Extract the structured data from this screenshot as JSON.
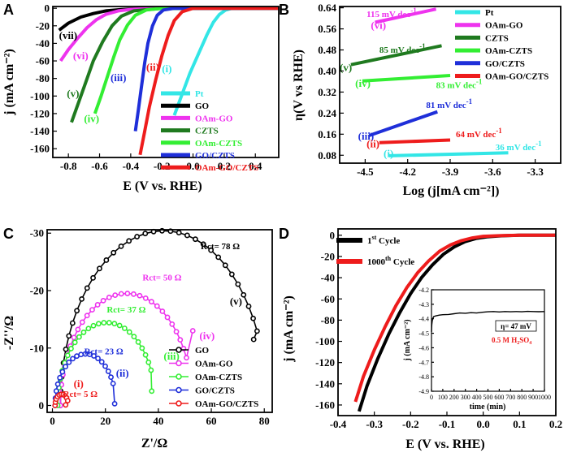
{
  "colors": {
    "pt": "#33e6e6",
    "go": "#000000",
    "oam_go": "#ee33ee",
    "czts": "#1f7a1f",
    "oam_czts": "#33ee33",
    "go_czts": "#1f2fd9",
    "oam_go_czts": "#ee1c1c"
  },
  "chart_data": [
    {
      "id": "A",
      "panel_label": "A",
      "type": "line",
      "xlabel": "E (V vs. RHE)",
      "ylabel": "j (mA cm⁻²)",
      "xlim": [
        -0.9,
        0.55
      ],
      "ylim": [
        -170,
        2
      ],
      "xticks": [
        -0.8,
        -0.6,
        -0.4,
        -0.2,
        0.0,
        0.2,
        0.4
      ],
      "xtick_labels": [
        "-0.8",
        "-0.6",
        "-0.4",
        "-0.2",
        "0.0",
        "0.2",
        "0.4"
      ],
      "yticks": [
        0,
        -20,
        -40,
        -60,
        -80,
        -100,
        -120,
        -140,
        -160
      ],
      "ytick_labels": [
        "0",
        "-20",
        "-40",
        "-60",
        "-80",
        "-100",
        "-120",
        "-140",
        "-160"
      ],
      "series": [
        {
          "name": "Pt",
          "color": "#33e6e6",
          "x": [
            -0.12,
            -0.07,
            -0.02,
            0.04,
            0.09,
            0.13,
            0.17,
            0.21,
            0.25,
            0.55
          ],
          "y": [
            -122,
            -98,
            -74,
            -50,
            -30,
            -16,
            -7,
            -2,
            0,
            0
          ]
        },
        {
          "name": "GO",
          "color": "#000000",
          "x": [
            -0.86,
            -0.8,
            -0.72,
            -0.64,
            -0.56,
            -0.46,
            -0.36,
            -0.2,
            0.55
          ],
          "y": [
            -25,
            -17,
            -10,
            -6,
            -3,
            -1.5,
            -0.5,
            0,
            0
          ]
        },
        {
          "name": "OAm-GO",
          "color": "#ee33ee",
          "x": [
            -0.85,
            -0.8,
            -0.74,
            -0.68,
            -0.62,
            -0.56,
            -0.48,
            -0.38,
            -0.2,
            0.55
          ],
          "y": [
            -60,
            -47,
            -34,
            -22,
            -13,
            -7,
            -3,
            -1,
            0,
            0
          ]
        },
        {
          "name": "CZTS",
          "color": "#1f7a1f",
          "x": [
            -0.78,
            -0.74,
            -0.69,
            -0.64,
            -0.58,
            -0.52,
            -0.46,
            -0.38,
            -0.2,
            0.55
          ],
          "y": [
            -130,
            -110,
            -85,
            -60,
            -38,
            -20,
            -9,
            -3,
            0,
            0
          ]
        },
        {
          "name": "OAm-CZTS",
          "color": "#33ee33",
          "x": [
            -0.63,
            -0.59,
            -0.55,
            -0.51,
            -0.47,
            -0.42,
            -0.37,
            -0.3,
            -0.2,
            0.55
          ],
          "y": [
            -120,
            -100,
            -78,
            -56,
            -36,
            -19,
            -8,
            -2,
            0,
            0
          ]
        },
        {
          "name": "GO/CZTS",
          "color": "#1f2fd9",
          "x": [
            -0.37,
            -0.35,
            -0.33,
            -0.31,
            -0.29,
            -0.26,
            -0.23,
            -0.19,
            -0.12,
            0.55
          ],
          "y": [
            -140,
            -115,
            -88,
            -62,
            -40,
            -20,
            -8,
            -2,
            0,
            0
          ]
        },
        {
          "name": "OAm-GO/CZTS",
          "color": "#ee1c1c",
          "x": [
            -0.34,
            -0.31,
            -0.28,
            -0.24,
            -0.2,
            -0.16,
            -0.12,
            -0.07,
            0.0,
            0.55
          ],
          "y": [
            -167,
            -140,
            -112,
            -82,
            -54,
            -31,
            -14,
            -4,
            0,
            0
          ]
        }
      ],
      "labels": [
        {
          "text": "(vii)",
          "color": "#000000",
          "x": -0.86,
          "y": -35
        },
        {
          "text": "(vi)",
          "color": "#ee33ee",
          "x": -0.77,
          "y": -58
        },
        {
          "text": "(v)",
          "color": "#1f7a1f",
          "x": -0.81,
          "y": -101
        },
        {
          "text": "(iv)",
          "color": "#33ee33",
          "x": -0.7,
          "y": -130
        },
        {
          "text": "(iii)",
          "color": "#1f2fd9",
          "x": -0.53,
          "y": -83
        },
        {
          "text": "(ii)",
          "color": "#ee1c1c",
          "x": -0.3,
          "y": -71
        },
        {
          "text": "(i)",
          "color": "#33e6e6",
          "x": -0.2,
          "y": -73
        }
      ],
      "legend": [
        "Pt",
        "GO",
        "OAm-GO",
        "CZTS",
        "OAm-CZTS",
        "GO/CZTS",
        "OAm-GO/CZTS"
      ],
      "legend_position": "lower-right"
    },
    {
      "id": "B",
      "panel_label": "B",
      "type": "line",
      "xlabel": "Log (j[mA cm⁻²])",
      "ylabel": "η(V vs RHE)",
      "xlim": [
        -4.68,
        -3.12
      ],
      "ylim": [
        0.05,
        0.645
      ],
      "xticks": [
        -4.5,
        -4.2,
        -3.9,
        -3.6,
        -3.3
      ],
      "xtick_labels": [
        "-4.5",
        "-4.2",
        "-3.9",
        "-3.6",
        "-3.3"
      ],
      "yticks": [
        0.08,
        0.16,
        0.24,
        0.32,
        0.4,
        0.48,
        0.56,
        0.64
      ],
      "ytick_labels": [
        "0.08",
        "0.16",
        "0.24",
        "0.32",
        "0.40",
        "0.48",
        "0.56",
        "0.64"
      ],
      "series": [
        {
          "name": "Pt",
          "color": "#33e6e6",
          "x": [
            -4.33,
            -3.49
          ],
          "y": [
            0.078,
            0.089
          ]
        },
        {
          "name": "OAm-GO",
          "color": "#ee33ee",
          "x": [
            -4.43,
            -4.0
          ],
          "y": [
            0.585,
            0.635
          ]
        },
        {
          "name": "CZTS",
          "color": "#1f7a1f",
          "x": [
            -4.6,
            -3.96
          ],
          "y": [
            0.424,
            0.496
          ]
        },
        {
          "name": "OAm-CZTS",
          "color": "#33ee33",
          "x": [
            -4.52,
            -3.9
          ],
          "y": [
            0.362,
            0.383
          ]
        },
        {
          "name": "GO/CZTS",
          "color": "#1f2fd9",
          "x": [
            -4.47,
            -3.99
          ],
          "y": [
            0.155,
            0.245
          ]
        },
        {
          "name": "OAm-GO/CZTS",
          "color": "#ee1c1c",
          "x": [
            -4.4,
            -3.9
          ],
          "y": [
            0.128,
            0.138
          ]
        }
      ],
      "slopes": [
        {
          "text": "115 mV dec",
          "sup": "-1",
          "color": "#ee33ee",
          "x": -4.49,
          "y": 0.605
        },
        {
          "text": "85 mV dec",
          "sup": "-1",
          "color": "#1f7a1f",
          "x": -4.4,
          "y": 0.47
        },
        {
          "text": "83 mV dec",
          "sup": "-1",
          "color": "#33ee33",
          "x": -4.0,
          "y": 0.335
        },
        {
          "text": "81 mV dec",
          "sup": "-1",
          "color": "#1f2fd9",
          "x": -4.07,
          "y": 0.26
        },
        {
          "text": "64 mV dec",
          "sup": "-1",
          "color": "#ee1c1c",
          "x": -3.86,
          "y": 0.148
        },
        {
          "text": "36 mV dec",
          "sup": "-1",
          "color": "#33e6e6",
          "x": -3.58,
          "y": 0.1
        }
      ],
      "labels": [
        {
          "text": "(vi)",
          "color": "#ee33ee",
          "x": -4.46,
          "y": 0.56
        },
        {
          "text": "(v)",
          "color": "#1f7a1f",
          "x": -4.68,
          "y": 0.4
        },
        {
          "text": "(iv)",
          "color": "#33ee33",
          "x": -4.57,
          "y": 0.34
        },
        {
          "text": "(iii)",
          "color": "#1f2fd9",
          "x": -4.55,
          "y": 0.14
        },
        {
          "text": "(ii)",
          "color": "#ee1c1c",
          "x": -4.49,
          "y": 0.11
        },
        {
          "text": "(i)",
          "color": "#33e6e6",
          "x": -4.37,
          "y": 0.073
        }
      ],
      "legend": [
        "Pt",
        "OAm-GO",
        "CZTS",
        "OAm-CZTS",
        "GO/CZTS",
        "OAm-GO/CZTS"
      ],
      "legend_position": "upper-right"
    },
    {
      "id": "C",
      "panel_label": "C",
      "type": "scatter",
      "xlabel": "Z'/Ω",
      "ylabel": "-Z''/Ω",
      "xlim": [
        -2,
        83
      ],
      "ylim": [
        1.2,
        -30.6
      ],
      "xticks": [
        0,
        20,
        40,
        60,
        80
      ],
      "xtick_labels": [
        "0",
        "20",
        "40",
        "60",
        "80"
      ],
      "yticks": [
        0,
        -10,
        -20,
        -30
      ],
      "ytick_labels": [
        "0",
        "-10",
        "-20",
        "-30"
      ],
      "series": [
        {
          "name": "GO",
          "color": "#000000",
          "Rs": 3,
          "Rct": 78,
          "points": 34,
          "tail_x": 76,
          "tail_y": -11.5
        },
        {
          "name": "OAm-GO",
          "color": "#ee33ee",
          "Rs": 3,
          "Rct": 50,
          "points": 30,
          "tail_x": 53,
          "tail_y": -13
        },
        {
          "name": "OAm-CZTS",
          "color": "#33ee33",
          "Rs": 2,
          "Rct": 37,
          "points": 26,
          "tail_x": 37.5,
          "tail_y": -2.5
        },
        {
          "name": "GO/CZTS",
          "color": "#1f2fd9",
          "Rs": 1,
          "Rct": 23,
          "points": 20,
          "tail_x": 23.5,
          "tail_y": -0.3
        },
        {
          "name": "OAm-GO/CZTS",
          "color": "#ee1c1c",
          "Rs": 1,
          "Rct": 5,
          "points": 10,
          "tail_x": 5,
          "tail_y": -0.1
        }
      ],
      "rct_labels": [
        {
          "text": "Rct= 78 Ω",
          "color": "#000000",
          "x": 56,
          "y": -27.2
        },
        {
          "text": "Rct= 50 Ω",
          "color": "#ee33ee",
          "x": 34,
          "y": -21.8
        },
        {
          "text": "Rct= 37 Ω",
          "color": "#33ee33",
          "x": 20.5,
          "y": -16.2
        },
        {
          "text": "Rct= 23 Ω",
          "color": "#1f2fd9",
          "x": 12,
          "y": -8.9
        },
        {
          "text": "Rct= 5 Ω",
          "color": "#ee1c1c",
          "x": 4,
          "y": -1.5
        }
      ],
      "labels": [
        {
          "text": "(v)",
          "color": "#000000",
          "x": 67,
          "y": -17.5
        },
        {
          "text": "(iv)",
          "color": "#ee33ee",
          "x": 55.5,
          "y": -11.5
        },
        {
          "text": "(iii)",
          "color": "#33ee33",
          "x": 42,
          "y": -8
        },
        {
          "text": "(ii)",
          "color": "#1f2fd9",
          "x": 24,
          "y": -5
        },
        {
          "text": "(i)",
          "color": "#ee1c1c",
          "x": 8,
          "y": -3.2
        }
      ],
      "legend": [
        "GO",
        "OAm-GO",
        "OAm-CZTS",
        "GO/CZTS",
        "OAm-GO/CZTS"
      ],
      "legend_position": "lower-right"
    },
    {
      "id": "D",
      "panel_label": "D",
      "type": "line",
      "xlabel": "E (V vs. RHE)",
      "ylabel": "j (mA cm⁻²)",
      "xlim": [
        -0.4,
        0.2
      ],
      "ylim": [
        -170,
        6
      ],
      "xticks": [
        -0.4,
        -0.3,
        -0.2,
        -0.1,
        0.0,
        0.1,
        0.2
      ],
      "xtick_labels": [
        "-0.4",
        "-0.3",
        "-0.2",
        "-0.1",
        "0.0",
        "0.1",
        "0.2"
      ],
      "yticks": [
        0,
        -20,
        -40,
        -60,
        -80,
        -100,
        -120,
        -140,
        -160
      ],
      "ytick_labels": [
        "0",
        "-20",
        "-40",
        "-60",
        "-80",
        "-100",
        "-120",
        "-140",
        "-160"
      ],
      "series": [
        {
          "name": "1st Cycle",
          "label_main": "1",
          "label_sup": "st",
          "label_rest": " Cycle",
          "color": "#000000",
          "x": [
            -0.342,
            -0.32,
            -0.29,
            -0.26,
            -0.23,
            -0.2,
            -0.17,
            -0.14,
            -0.11,
            -0.08,
            -0.05,
            -0.02,
            0.01,
            0.05,
            0.1,
            0.2
          ],
          "y": [
            -166,
            -142,
            -116,
            -93,
            -73,
            -55,
            -40,
            -28,
            -18,
            -11,
            -6,
            -3,
            -1.5,
            -0.5,
            0,
            0
          ]
        },
        {
          "name": "1000th Cycle",
          "label_main": "1000",
          "label_sup": "th",
          "label_rest": " Cycle",
          "color": "#ee1c1c",
          "x": [
            -0.352,
            -0.33,
            -0.3,
            -0.27,
            -0.24,
            -0.21,
            -0.18,
            -0.15,
            -0.12,
            -0.09,
            -0.06,
            -0.03,
            0.0,
            0.05,
            0.1,
            0.2
          ],
          "y": [
            -157,
            -133,
            -108,
            -86,
            -66,
            -49,
            -35,
            -24,
            -15,
            -9,
            -5,
            -2.5,
            -1,
            -0.3,
            0,
            0
          ]
        }
      ],
      "legend_position": "top-left",
      "inset": {
        "xlabel": "time (min)",
        "ylabel": "j (mA cm⁻²)",
        "xlim": [
          0,
          1000
        ],
        "ylim": [
          -4.9,
          -4.2
        ],
        "xticks": [
          0,
          100,
          200,
          300,
          400,
          500,
          600,
          700,
          800,
          900,
          1000
        ],
        "xtick_labels": [
          "0",
          "100",
          "200",
          "300",
          "400",
          "500",
          "600",
          "700",
          "800",
          "900",
          "1000"
        ],
        "yticks": [
          -4.2,
          -4.3,
          -4.4,
          -4.5,
          -4.6,
          -4.7,
          -4.8,
          -4.9
        ],
        "ytick_labels": [
          "-4.2",
          "-4.3",
          "-4.4",
          "-4.5",
          "-4.6",
          "-4.7",
          "-4.8",
          "-4.9"
        ],
        "x": [
          0,
          3,
          6,
          10,
          20,
          40,
          70,
          100,
          150,
          200,
          250,
          300,
          350,
          400,
          450,
          500,
          550,
          600,
          650,
          700,
          750,
          800,
          850,
          900,
          950,
          1000
        ],
        "y": [
          -4.49,
          -4.44,
          -4.42,
          -4.4,
          -4.385,
          -4.38,
          -4.375,
          -4.372,
          -4.37,
          -4.365,
          -4.36,
          -4.362,
          -4.358,
          -4.36,
          -4.355,
          -4.352,
          -4.35,
          -4.353,
          -4.35,
          -4.352,
          -4.35,
          -4.352,
          -4.349,
          -4.35,
          -4.351,
          -4.35
        ],
        "eta_label": "η= 47 mV",
        "electrolyte_main": "0.5 M H",
        "electrolyte_sub1": "2",
        "electrolyte_mid": "SO",
        "electrolyte_sub2": "4"
      }
    }
  ]
}
